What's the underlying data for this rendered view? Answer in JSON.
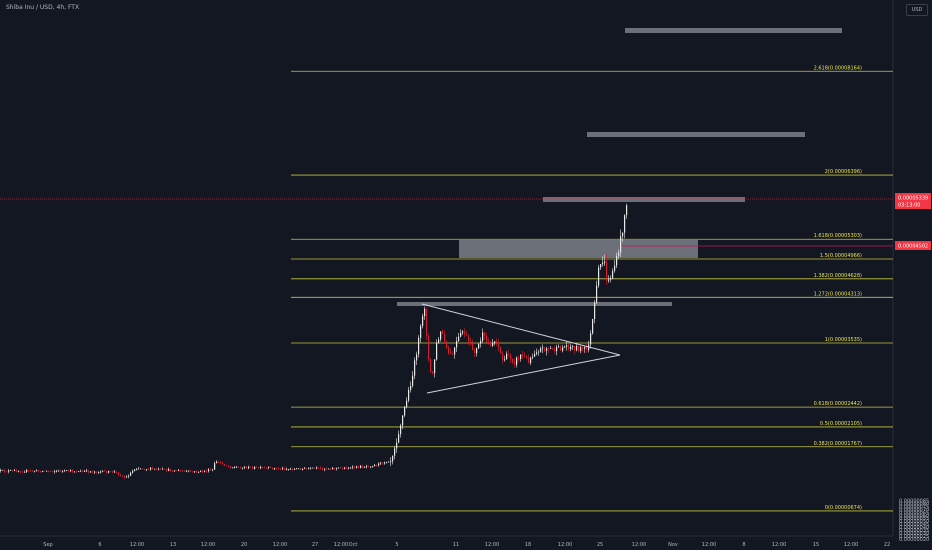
{
  "header": {
    "title": "Shiba Inu / USD, 4h, FTX",
    "currency": "USD"
  },
  "colors": {
    "background": "#131722",
    "up": "#e8e8e8",
    "down": "#d11f2c",
    "fib": "#c6c63e",
    "zone": "#8a8d94",
    "price_line": "#f23645",
    "level_line": "#c2185b",
    "triangle": "#d1d4dc"
  },
  "chart_data": {
    "type": "candlestick",
    "title": "Shiba Inu / USD, 4h, FTX",
    "ylim": [
      1.8e-06,
      9.4e-06
    ],
    "y_ticks": [
      {
        "v": 2e-06,
        "label": "0.0000020"
      },
      {
        "v": 2.5e-06,
        "label": "0.0000025"
      },
      {
        "v": 3e-06,
        "label": "0.0000030"
      },
      {
        "v": 3.5e-06,
        "label": "0.0000035"
      },
      {
        "v": 4e-06,
        "label": "0.0000040"
      },
      {
        "v": 4.5e-06,
        "label": "0.0000045"
      },
      {
        "v": 5e-06,
        "label": "0.0000050"
      },
      {
        "v": 5.5e-06,
        "label": "0.0000055"
      },
      {
        "v": 6e-06,
        "label": "0.0000060"
      },
      {
        "v": 6.5e-06,
        "label": "0.0000065"
      },
      {
        "v": 7e-06,
        "label": "0.0000070"
      },
      {
        "v": 7.5e-06,
        "label": "0.0000075"
      },
      {
        "v": 8e-06,
        "label": "0.0000080"
      },
      {
        "v": 8.5e-06,
        "label": "0.0000085"
      }
    ],
    "x_ticks": [
      "Sep",
      "6",
      "12:00",
      "13",
      "12:00",
      "20",
      "12:00",
      "27",
      "12:00",
      "Oct",
      "5",
      "11",
      "12:00",
      "18",
      "12:00",
      "25",
      "12:00",
      "Nov",
      "12:00",
      "8",
      "12:00",
      "15",
      "12:00",
      "22"
    ],
    "fib_levels": [
      {
        "ratio": "0",
        "value": 6.74e-06,
        "label": "0(0.00000674)"
      },
      {
        "ratio": "0.382",
        "value": 1.767e-05,
        "label": "0.382(0.00001767)"
      },
      {
        "ratio": "0.5",
        "value": 2.105e-05,
        "label": "0.5(0.00002105)"
      },
      {
        "ratio": "0.618",
        "value": 2.442e-05,
        "label": "0.618(0.00002442)"
      },
      {
        "ratio": "1",
        "value": 3.535e-05,
        "label": "1(0.00003535)"
      },
      {
        "ratio": "1.272",
        "value": 4.313e-05,
        "label": "1.272(0.00004313)"
      },
      {
        "ratio": "1.382",
        "value": 4.628e-05,
        "label": "1.382(0.00004628)"
      },
      {
        "ratio": "1.5",
        "value": 4.966e-05,
        "label": "1.5(0.00004966)"
      },
      {
        "ratio": "1.618",
        "value": 5.303e-05,
        "label": "1.618(0.00005303)"
      },
      {
        "ratio": "2",
        "value": 6.396e-05,
        "label": "2(0.00006396)"
      },
      {
        "ratio": "2.618",
        "value": 8.164e-05,
        "label": "2.618(0.00008164)"
      }
    ],
    "last_price": {
      "value": "0.00005339",
      "countdown": "03:13:00"
    },
    "level_price": {
      "value": "0.00004502"
    }
  }
}
